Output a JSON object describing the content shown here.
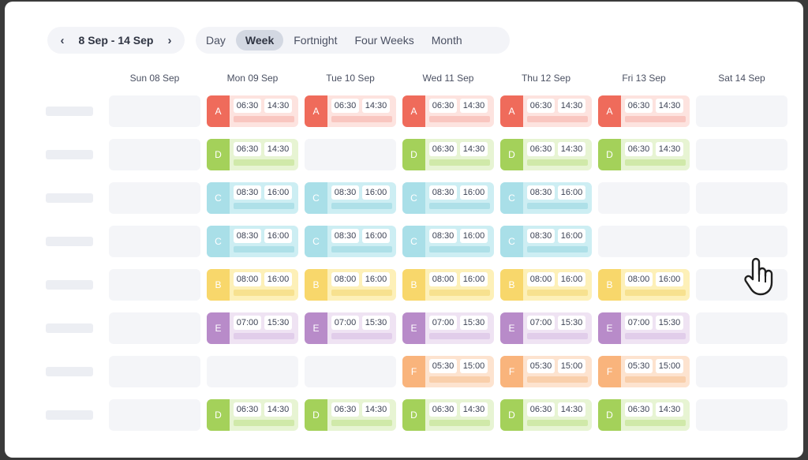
{
  "toolbar": {
    "date_range": "8 Sep - 14 Sep",
    "prev_icon": "chevron-left-icon",
    "next_icon": "chevron-right-icon",
    "views": [
      {
        "label": "Day",
        "active": false
      },
      {
        "label": "Week",
        "active": true
      },
      {
        "label": "Fortnight",
        "active": false
      },
      {
        "label": "Four Weeks",
        "active": false
      },
      {
        "label": "Month",
        "active": false
      }
    ]
  },
  "days": [
    "Sun 08 Sep",
    "Mon 09 Sep",
    "Tue 10 Sep",
    "Wed 11 Sep",
    "Thu 12 Sep",
    "Fri 13 Sep",
    "Sat 14 Sep"
  ],
  "shift_types": {
    "A": {
      "start": "06:30",
      "end": "14:30",
      "badge": "#ef6b5b",
      "bg": "#fde3df",
      "bar": "#f9c6c0"
    },
    "D": {
      "start": "06:30",
      "end": "14:30",
      "badge": "#a4d15a",
      "bg": "#e7f4d3",
      "bar": "#d0e9a9"
    },
    "C": {
      "start": "08:30",
      "end": "16:00",
      "badge": "#a9dfe8",
      "bg": "#cdeef3",
      "bar": "#aee0e8"
    },
    "B": {
      "start": "08:00",
      "end": "16:00",
      "badge": "#f8d76b",
      "bg": "#fdf0b8",
      "bar": "#f7e18f"
    },
    "E": {
      "start": "07:00",
      "end": "15:30",
      "badge": "#b88bc9",
      "bg": "#efe3f3",
      "bar": "#e1cdea"
    },
    "F": {
      "start": "05:30",
      "end": "15:00",
      "badge": "#f9b47c",
      "bg": "#fde3cf",
      "bar": "#f9cfab"
    }
  },
  "rows": [
    [
      "",
      "A",
      "A",
      "A",
      "A",
      "A",
      ""
    ],
    [
      "",
      "D",
      "",
      "D",
      "D",
      "D",
      ""
    ],
    [
      "",
      "C",
      "C",
      "C",
      "C",
      "",
      ""
    ],
    [
      "",
      "C",
      "C",
      "C",
      "C",
      "",
      ""
    ],
    [
      "",
      "B",
      "B",
      "B",
      "B",
      "B",
      ""
    ],
    [
      "",
      "E",
      "E",
      "E",
      "E",
      "E",
      ""
    ],
    [
      "",
      "",
      "",
      "F",
      "F",
      "F",
      ""
    ],
    [
      "",
      "D",
      "D",
      "D",
      "D",
      "D",
      ""
    ]
  ],
  "cursor_icon": "hand-pointer-icon"
}
